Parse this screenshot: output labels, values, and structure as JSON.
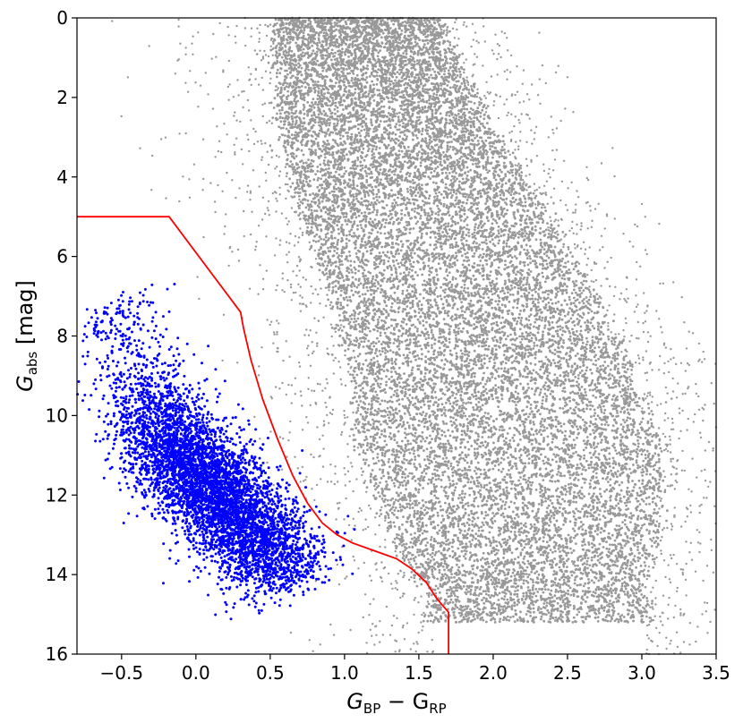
{
  "chart_data": {
    "type": "scatter",
    "title": "",
    "xlabel": {
      "main": "G",
      "sub1": "BP",
      "mid": " − G",
      "sub2": "RP"
    },
    "ylabel": {
      "main": "G",
      "sub": "abs",
      "unit": " [mag]"
    },
    "xlim": [
      -0.8,
      3.5
    ],
    "ylim": [
      16,
      0
    ],
    "y_inverted": true,
    "grid": false,
    "x_ticks": [
      -0.5,
      0.0,
      0.5,
      1.0,
      1.5,
      2.0,
      2.5,
      3.0,
      3.5
    ],
    "x_tick_labels": [
      "−0.5",
      "0.0",
      "0.5",
      "1.0",
      "1.5",
      "2.0",
      "2.5",
      "3.0",
      "3.5"
    ],
    "y_ticks": [
      0,
      2,
      4,
      6,
      8,
      10,
      12,
      14,
      16
    ],
    "y_tick_labels": [
      "0",
      "2",
      "4",
      "6",
      "8",
      "10",
      "12",
      "14",
      "16"
    ],
    "series": [
      {
        "kind": "density-band",
        "color": "#999999",
        "approx_points": 60000,
        "band_upper_edge": [
          [
            0.55,
            0
          ],
          [
            0.6,
            3
          ],
          [
            0.75,
            5
          ],
          [
            0.95,
            7
          ],
          [
            1.1,
            9
          ],
          [
            1.15,
            11
          ],
          [
            1.35,
            13
          ],
          [
            1.6,
            14.7
          ]
        ],
        "band_lower_edge": [
          [
            1.6,
            0
          ],
          [
            2.0,
            3
          ],
          [
            2.4,
            5.5
          ],
          [
            2.8,
            8
          ],
          [
            3.05,
            10.5
          ],
          [
            3.1,
            12.5
          ],
          [
            3.0,
            14
          ]
        ]
      },
      {
        "kind": "density-cloud",
        "color": "#0000ff",
        "approx_points": 9000,
        "ridge": [
          [
            -0.55,
            7.5
          ],
          [
            -0.35,
            9.5
          ],
          [
            -0.15,
            10.8
          ],
          [
            0.1,
            11.8
          ],
          [
            0.35,
            12.9
          ],
          [
            0.55,
            13.7
          ],
          [
            0.65,
            14.2
          ]
        ]
      },
      {
        "kind": "line",
        "color": "#ff0000",
        "x": [
          -0.8,
          -0.18,
          0.3,
          0.32,
          0.37,
          0.45,
          0.55,
          0.65,
          0.75,
          0.85,
          0.95,
          1.05,
          1.2,
          1.35,
          1.45,
          1.55,
          1.62,
          1.7,
          1.7
        ],
        "y": [
          5.0,
          5.0,
          7.4,
          7.8,
          8.6,
          9.6,
          10.6,
          11.5,
          12.2,
          12.7,
          13.0,
          13.2,
          13.4,
          13.6,
          13.85,
          14.2,
          14.6,
          14.95,
          16.0
        ]
      }
    ]
  }
}
